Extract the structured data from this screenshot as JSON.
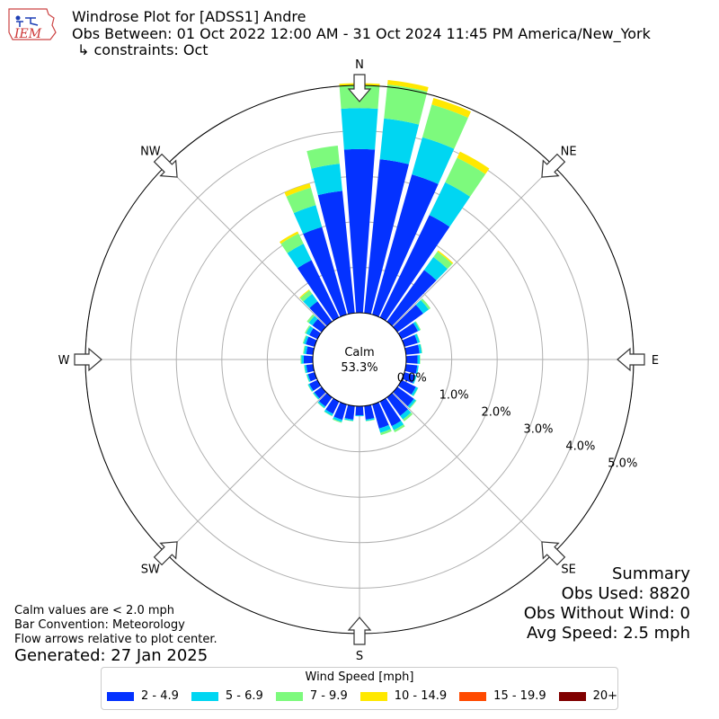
{
  "header": {
    "title": "Windrose Plot for [ADSS1] Andre",
    "subtitle": "Obs Between: 01 Oct 2022 12:00 AM - 31 Oct 2024 11:45 PM America/New_York",
    "constraints": "↳ constraints: Oct",
    "logo_text": "IEM"
  },
  "center": {
    "label": "Calm",
    "value": "53.3%"
  },
  "notes": [
    "Calm values are < 2.0 mph",
    "Bar Convention: Meteorology",
    "Flow arrows relative to plot center."
  ],
  "generated": "Generated: 27 Jan 2025",
  "summary": {
    "title": "Summary",
    "obs_used": "Obs Used: 8820",
    "obs_without_wind": "Obs Without Wind: 0",
    "avg_speed": "Avg Speed: 2.5 mph"
  },
  "legend": {
    "title": "Wind Speed [mph]",
    "items": [
      {
        "label": "2 - 4.9",
        "color": "#0432ff"
      },
      {
        "label": "5 - 6.9",
        "color": "#00d6f2"
      },
      {
        "label": "7 - 9.9",
        "color": "#7dfa7d"
      },
      {
        "label": "10 - 14.9",
        "color": "#ffe800"
      },
      {
        "label": "15 - 19.9",
        "color": "#ff4a00"
      },
      {
        "label": "20+",
        "color": "#800000"
      }
    ]
  },
  "chart_data": {
    "type": "windrose",
    "direction_labels": [
      "N",
      "NE",
      "E",
      "SE",
      "S",
      "SW",
      "W",
      "NW"
    ],
    "radial_tick_labels": [
      "0.0%",
      "1.0%",
      "2.0%",
      "3.0%",
      "4.0%",
      "5.0%"
    ],
    "radial_max_percent": 5.0,
    "calm_percent": 53.3,
    "directions_deg": [
      0,
      10,
      20,
      30,
      40,
      50,
      60,
      70,
      80,
      90,
      100,
      110,
      120,
      130,
      140,
      150,
      160,
      170,
      180,
      190,
      200,
      210,
      220,
      230,
      240,
      250,
      260,
      270,
      280,
      290,
      300,
      310,
      320,
      330,
      340,
      350
    ],
    "series": [
      {
        "name": "2 - 4.9",
        "values": [
          3.6,
          3.4,
          3.2,
          2.5,
          1.4,
          0.7,
          0.4,
          0.3,
          0.3,
          0.25,
          0.25,
          0.25,
          0.35,
          0.45,
          0.5,
          0.6,
          0.55,
          0.3,
          0.2,
          0.3,
          0.35,
          0.3,
          0.25,
          0.2,
          0.2,
          0.15,
          0.15,
          0.2,
          0.15,
          0.2,
          0.2,
          0.25,
          0.55,
          1.4,
          2.0,
          2.7
        ]
      },
      {
        "name": "5 - 6.9",
        "values": [
          0.9,
          0.9,
          0.85,
          0.8,
          0.35,
          0.15,
          0.05,
          0.05,
          0.05,
          0.05,
          0.03,
          0.03,
          0.05,
          0.05,
          0.1,
          0.1,
          0.1,
          0.03,
          0.02,
          0.03,
          0.05,
          0.05,
          0.04,
          0.03,
          0.03,
          0.03,
          0.04,
          0.05,
          0.05,
          0.05,
          0.08,
          0.1,
          0.2,
          0.4,
          0.5,
          0.6
        ]
      },
      {
        "name": "7 - 9.9",
        "values": [
          0.5,
          0.75,
          0.75,
          0.6,
          0.15,
          0.05,
          0.02,
          0.01,
          0.01,
          0.01,
          0.0,
          0.0,
          0.01,
          0.02,
          0.05,
          0.05,
          0.05,
          0.01,
          0.0,
          0.01,
          0.02,
          0.01,
          0.01,
          0.01,
          0.01,
          0.01,
          0.01,
          0.02,
          0.02,
          0.02,
          0.03,
          0.05,
          0.1,
          0.25,
          0.4,
          0.4
        ]
      },
      {
        "name": "10 - 14.9",
        "values": [
          0.05,
          0.1,
          0.15,
          0.15,
          0.03,
          0.0,
          0.0,
          0.0,
          0.0,
          0.0,
          0.0,
          0.0,
          0.0,
          0.0,
          0.0,
          0.0,
          0.0,
          0.0,
          0.0,
          0.0,
          0.0,
          0.0,
          0.0,
          0.0,
          0.0,
          0.0,
          0.0,
          0.0,
          0.0,
          0.0,
          0.0,
          0.0,
          0.02,
          0.05,
          0.1,
          0.0
        ]
      },
      {
        "name": "15 - 19.9",
        "values": [
          0,
          0,
          0,
          0,
          0,
          0,
          0,
          0,
          0,
          0,
          0,
          0,
          0,
          0,
          0,
          0,
          0,
          0,
          0,
          0,
          0,
          0,
          0,
          0,
          0,
          0,
          0,
          0,
          0,
          0,
          0,
          0,
          0,
          0,
          0,
          0
        ]
      },
      {
        "name": "20+",
        "values": [
          0,
          0,
          0,
          0,
          0,
          0,
          0,
          0,
          0,
          0,
          0,
          0,
          0,
          0,
          0,
          0,
          0,
          0,
          0,
          0,
          0,
          0,
          0,
          0,
          0,
          0,
          0,
          0,
          0,
          0,
          0,
          0,
          0,
          0,
          0,
          0
        ]
      }
    ]
  }
}
